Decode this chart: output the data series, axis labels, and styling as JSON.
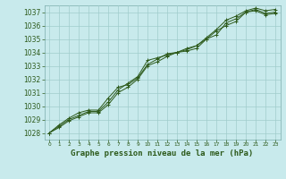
{
  "title": "Graphe pression niveau de la mer (hPa)",
  "hours": [
    0,
    1,
    2,
    3,
    4,
    5,
    6,
    7,
    8,
    9,
    10,
    11,
    12,
    13,
    14,
    15,
    16,
    17,
    18,
    19,
    20,
    21,
    22,
    23
  ],
  "ylim": [
    1027.5,
    1037.5
  ],
  "xlim": [
    -0.5,
    23.5
  ],
  "yticks": [
    1028,
    1029,
    1030,
    1031,
    1032,
    1033,
    1034,
    1035,
    1036,
    1037
  ],
  "bg_color": "#c8eaec",
  "grid_color": "#a0cccc",
  "line_color": "#2d5a1b",
  "series1": [
    1028.0,
    1028.5,
    1029.0,
    1029.3,
    1029.6,
    1029.6,
    1030.3,
    1031.2,
    1031.7,
    1032.2,
    1033.4,
    1033.6,
    1033.8,
    1034.0,
    1034.1,
    1034.3,
    1035.0,
    1035.3,
    1036.2,
    1036.5,
    1037.0,
    1037.2,
    1036.9,
    1037.0
  ],
  "series2": [
    1028.0,
    1028.6,
    1029.1,
    1029.5,
    1029.7,
    1029.7,
    1030.6,
    1031.4,
    1031.6,
    1032.1,
    1033.1,
    1033.5,
    1033.9,
    1034.0,
    1034.3,
    1034.5,
    1035.1,
    1035.7,
    1036.4,
    1036.7,
    1037.1,
    1037.3,
    1037.1,
    1037.2
  ],
  "series3": [
    1028.0,
    1028.4,
    1028.9,
    1029.2,
    1029.5,
    1029.5,
    1030.1,
    1031.0,
    1031.4,
    1032.0,
    1033.0,
    1033.3,
    1033.7,
    1034.0,
    1034.2,
    1034.5,
    1035.0,
    1035.6,
    1036.0,
    1036.3,
    1037.0,
    1037.1,
    1036.8,
    1036.9
  ],
  "title_fontsize": 6.5,
  "ytick_fontsize": 5.5,
  "xtick_fontsize": 4.2,
  "linewidth": 0.7,
  "markersize": 2.5
}
